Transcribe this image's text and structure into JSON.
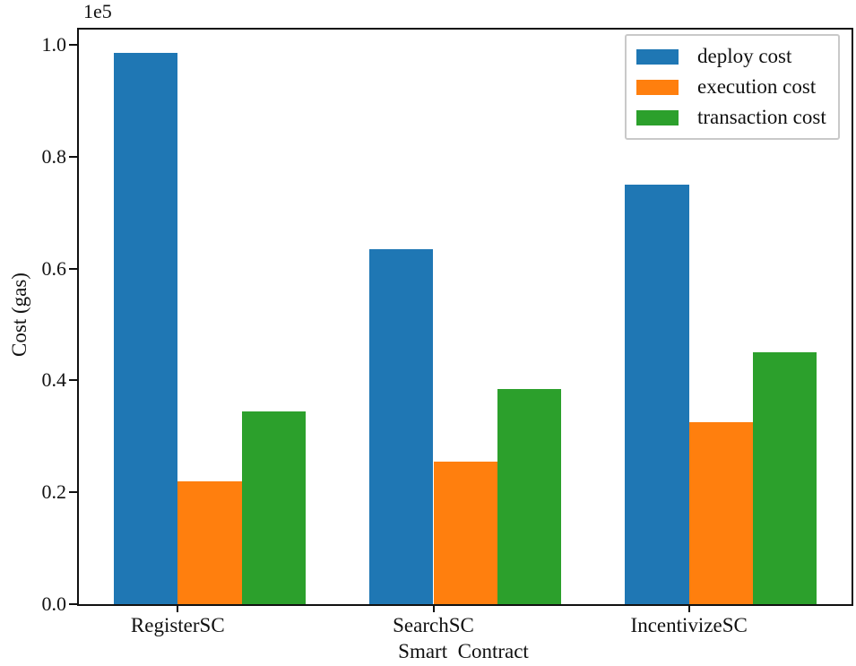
{
  "chart_data": {
    "type": "bar",
    "title": "",
    "xlabel": "Smart  Contract",
    "ylabel": "Cost (gas)",
    "offset_text": "1e5",
    "categories": [
      "RegisterSC",
      "SearchSC",
      "IncentivizeSC"
    ],
    "series": [
      {
        "name": "deploy cost",
        "color": "#1f77b4",
        "values": [
          98500,
          63500,
          75000
        ]
      },
      {
        "name": "execution cost",
        "color": "#ff7f0e",
        "values": [
          22000,
          25500,
          32500
        ]
      },
      {
        "name": "transaction cost",
        "color": "#2ca02c",
        "values": [
          34500,
          38500,
          45000
        ]
      }
    ],
    "yticks": [
      0,
      20000,
      40000,
      60000,
      80000,
      100000
    ],
    "ytick_labels": [
      "0.0",
      "0.2",
      "0.4",
      "0.6",
      "0.8",
      "1.0"
    ],
    "scale_factor": 100000,
    "ylim": [
      0,
      102700
    ],
    "legend_position": "upper right",
    "legend_labels": [
      "deploy cost",
      "execution cost",
      "transaction cost"
    ],
    "grid": false,
    "axis_color": "#111111"
  }
}
